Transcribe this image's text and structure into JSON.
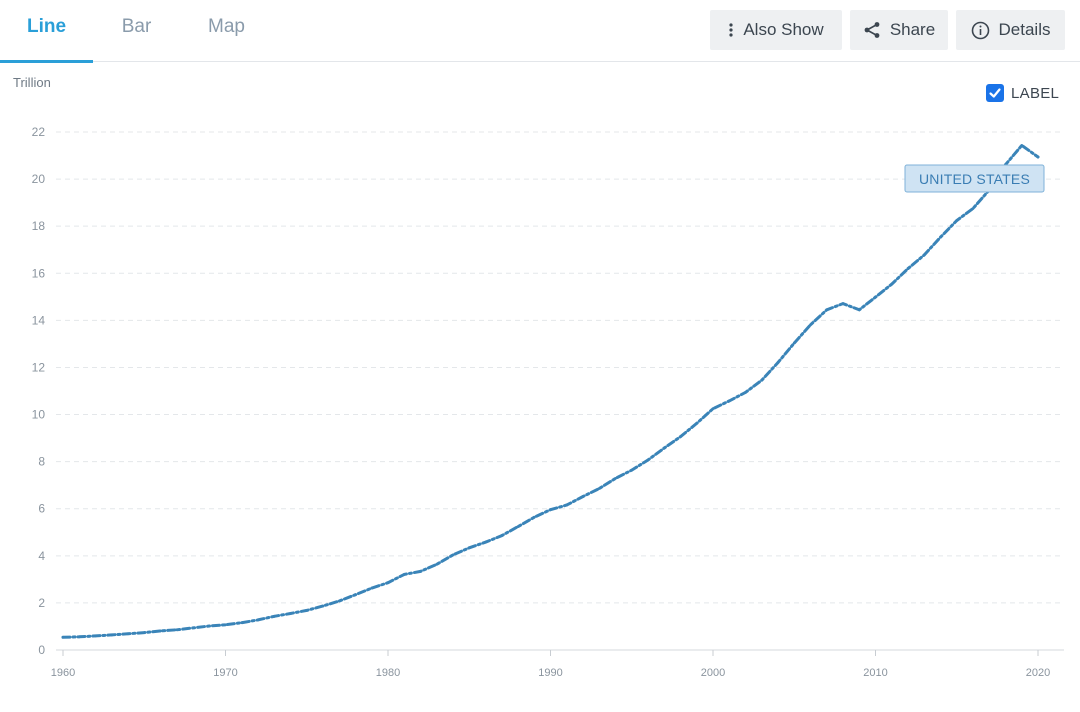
{
  "tabs": [
    {
      "label": "Line",
      "active": true
    },
    {
      "label": "Bar",
      "active": false
    },
    {
      "label": "Map",
      "active": false
    }
  ],
  "buttons": {
    "also_show": {
      "label": "Also Show",
      "icon": "vertical-dots-icon"
    },
    "share": {
      "label": "Share",
      "icon": "share-icon"
    },
    "details": {
      "label": "Details",
      "icon": "info-circle-icon"
    }
  },
  "label_toggle": {
    "label": "LABEL",
    "checked": true
  },
  "colors": {
    "accent": "#2a9fd8",
    "line": "#3a84b8",
    "checkbox": "#1a73e8"
  },
  "chart_data": {
    "type": "line",
    "ylabel": "Trillion",
    "ylim": [
      0,
      22
    ],
    "xlim": [
      1960,
      2020
    ],
    "yticks": [
      0,
      2,
      4,
      6,
      8,
      10,
      12,
      14,
      16,
      18,
      20,
      22
    ],
    "xticks": [
      1960,
      1970,
      1980,
      1990,
      2000,
      2010,
      2020
    ],
    "grid": true,
    "line_style": "dash-dot",
    "series": [
      {
        "name": "UNITED STATES",
        "x": [
          1960,
          1961,
          1962,
          1963,
          1964,
          1965,
          1966,
          1967,
          1968,
          1969,
          1970,
          1971,
          1972,
          1973,
          1974,
          1975,
          1976,
          1977,
          1978,
          1979,
          1980,
          1981,
          1982,
          1983,
          1984,
          1985,
          1986,
          1987,
          1988,
          1989,
          1990,
          1991,
          1992,
          1993,
          1994,
          1995,
          1996,
          1997,
          1998,
          1999,
          2000,
          2001,
          2002,
          2003,
          2004,
          2005,
          2006,
          2007,
          2008,
          2009,
          2010,
          2011,
          2012,
          2013,
          2014,
          2015,
          2016,
          2017,
          2018,
          2019,
          2020
        ],
        "values": [
          0.54,
          0.56,
          0.6,
          0.64,
          0.69,
          0.74,
          0.81,
          0.86,
          0.94,
          1.02,
          1.07,
          1.16,
          1.28,
          1.43,
          1.55,
          1.68,
          1.87,
          2.08,
          2.35,
          2.63,
          2.86,
          3.21,
          3.34,
          3.64,
          4.04,
          4.34,
          4.58,
          4.86,
          5.24,
          5.64,
          5.96,
          6.16,
          6.52,
          6.86,
          7.29,
          7.64,
          8.07,
          8.58,
          9.06,
          9.63,
          10.25,
          10.58,
          10.94,
          11.46,
          12.21,
          13.04,
          13.81,
          14.45,
          14.71,
          14.45,
          14.99,
          15.54,
          16.2,
          16.78,
          17.53,
          18.24,
          18.75,
          19.54,
          20.61,
          21.43,
          20.94
        ]
      }
    ]
  }
}
